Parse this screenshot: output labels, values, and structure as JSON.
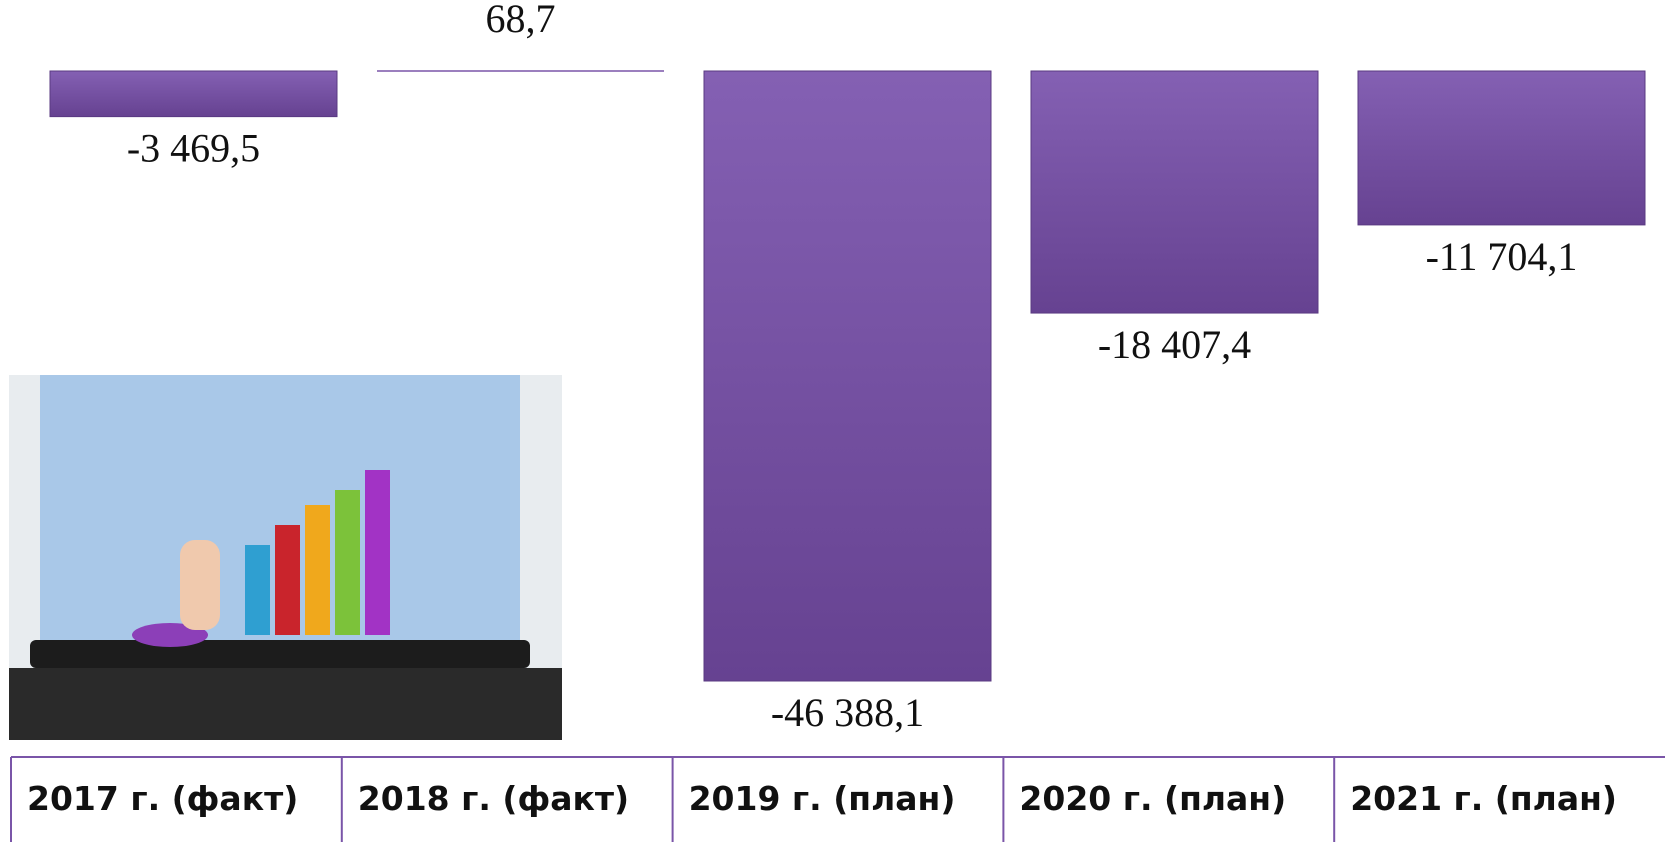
{
  "chart_data": {
    "type": "bar",
    "categories": [
      "2017 г. (факт)",
      "2018 г. (факт)",
      "2019 г. (план)",
      "2020 г. (план)",
      "2021 г. (план)"
    ],
    "values": [
      -3469.5,
      68.7,
      -46388.1,
      -18407.4,
      -11704.1
    ],
    "value_labels": [
      "-3 469,5",
      "68,7",
      "-46 388,1",
      "-18 407,4",
      "-11 704,1"
    ],
    "color": "#7a55a8"
  }
}
